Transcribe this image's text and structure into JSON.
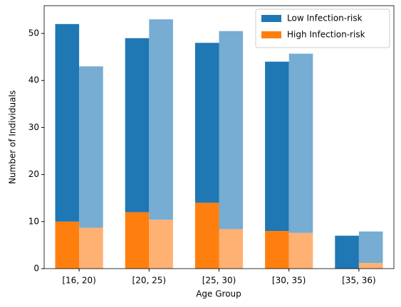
{
  "chart_data": {
    "type": "bar",
    "xlabel": "Age Group",
    "ylabel": "Number of Individuals",
    "categories": [
      "[16, 20)",
      "[20, 25)",
      "[25, 30)",
      "[30, 35)",
      "[35, 36)"
    ],
    "series": [
      {
        "name": "Low Infection-risk",
        "color": "#1f77b4",
        "values": [
          42,
          37,
          34,
          36,
          7
        ]
      },
      {
        "name": "High Infection-risk",
        "color": "#ff7f0e",
        "values": [
          10,
          12,
          14,
          8,
          0
        ]
      }
    ],
    "comparison_series": [
      {
        "color": "#77acd3",
        "values": [
          34.3,
          42.6,
          42.1,
          38.1,
          6.7
        ]
      },
      {
        "color": "#ffb073",
        "values": [
          8.7,
          10.4,
          8.4,
          7.6,
          1.2
        ]
      }
    ],
    "ylim": [
      0,
      55.9
    ],
    "yticks": [
      0,
      10,
      20,
      30,
      40,
      50
    ],
    "legend": "upper right",
    "grid": false
  }
}
